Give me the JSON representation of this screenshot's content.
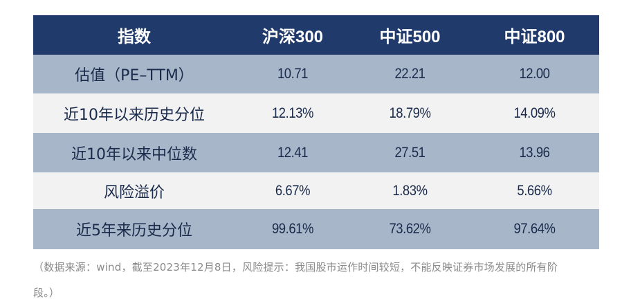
{
  "table": {
    "headers": [
      "指数",
      "沪深300",
      "中证500",
      "中证800"
    ],
    "rows": [
      {
        "label": "估值（PE–TTM）",
        "values": [
          "10.71",
          "22.21",
          "12.00"
        ]
      },
      {
        "label": "近10年以来历史分位",
        "values": [
          "12.13%",
          "18.79%",
          "14.09%"
        ]
      },
      {
        "label": "近10年以来中位数",
        "values": [
          "12.41",
          "27.51",
          "13.96"
        ]
      },
      {
        "label": "风险溢价",
        "values": [
          "6.67%",
          "1.83%",
          "5.66%"
        ]
      },
      {
        "label": "近5年来历史分位",
        "values": [
          "99.61%",
          "73.62%",
          "97.64%"
        ]
      }
    ]
  },
  "footnote": {
    "line1": "（数据来源：wind，截至2023年12月8日，风险提示：我国股市运作时间较短，不能反映证券市场发展的所有阶",
    "line2": "段。）"
  },
  "colors": {
    "header_bg": "#1f3a6b",
    "row_dark": "#a8b6c9",
    "row_light": "#f2f2f2"
  }
}
